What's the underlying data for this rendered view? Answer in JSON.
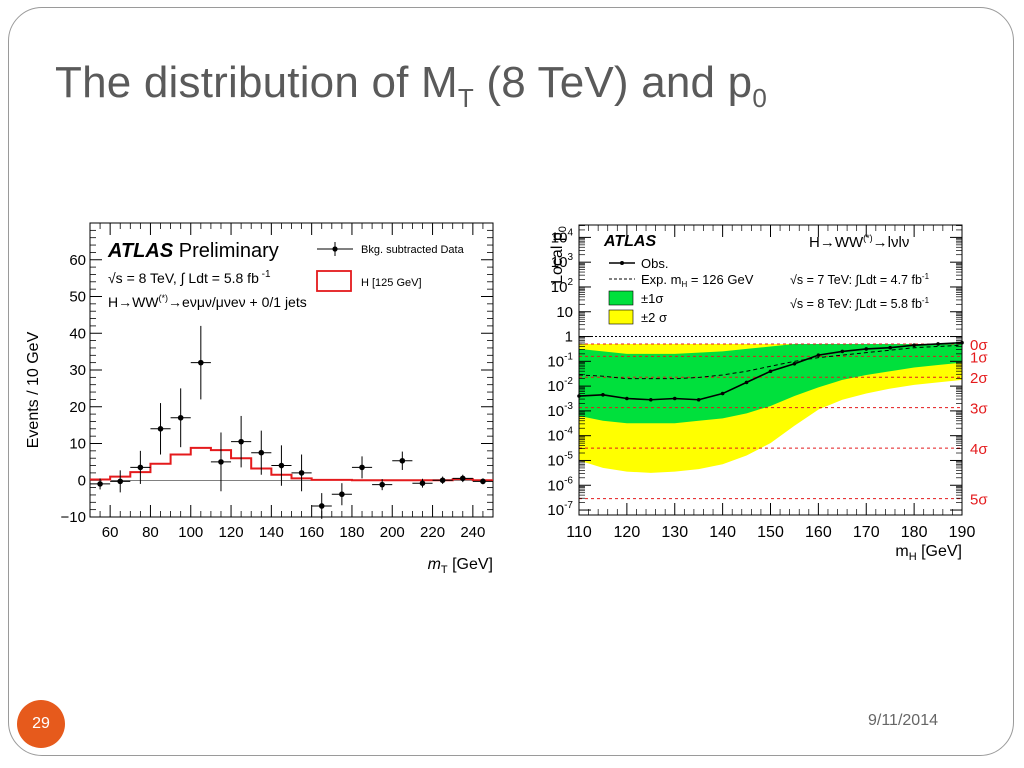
{
  "slide": {
    "title_main": "The distribution of M",
    "title_sub1": "T",
    "title_mid": " (8 TeV) and p",
    "title_sub2": "0",
    "page_number": "29",
    "date": "9/11/2014"
  },
  "colors": {
    "accent": "#e65a1c",
    "hist_red": "#e41a1c",
    "band1": "#00e03c",
    "band2": "#ffff00",
    "sigma_red": "#e41a1c"
  },
  "chart_data": [
    {
      "type": "histogram",
      "ylabel": "Events / 10 GeV",
      "xlabel": "m",
      "xlabel_sub": "T",
      "xlabel_unit": " [GeV]",
      "xlim": [
        50,
        250
      ],
      "ylim": [
        -10,
        70
      ],
      "x_ticks": [
        60,
        80,
        100,
        120,
        140,
        160,
        180,
        200,
        220,
        240
      ],
      "y_ticks": [
        -10,
        0,
        10,
        20,
        30,
        40,
        50,
        60
      ],
      "atlas": "ATLAS",
      "preliminary": "Preliminary",
      "energy_line": "√s = 8 TeV, ∫ Ldt = 5.8 fb",
      "energy_sup": "-1",
      "channel": "H→WW",
      "channel_sup": "(*)",
      "channel_rest": "→eνμν/μνeν + 0/1 jets",
      "legend": {
        "data": "Bkg. subtracted Data",
        "signal": "H [125 GeV]"
      },
      "data_points": [
        {
          "x": 55,
          "y": -1,
          "err": 1.5
        },
        {
          "x": 65,
          "y": -0.3,
          "err": 3
        },
        {
          "x": 75,
          "y": 3.5,
          "err": 4.5
        },
        {
          "x": 85,
          "y": 14,
          "err": 7
        },
        {
          "x": 95,
          "y": 17,
          "err": 8
        },
        {
          "x": 105,
          "y": 32,
          "err": 10
        },
        {
          "x": 115,
          "y": 5,
          "err": 8
        },
        {
          "x": 125,
          "y": 10.5,
          "err": 7
        },
        {
          "x": 135,
          "y": 7.5,
          "err": 6
        },
        {
          "x": 145,
          "y": 4,
          "err": 5.5
        },
        {
          "x": 155,
          "y": 2,
          "err": 5
        },
        {
          "x": 165,
          "y": -7,
          "err": 3.5
        },
        {
          "x": 175,
          "y": -3.8,
          "err": 3
        },
        {
          "x": 185,
          "y": 3.5,
          "err": 3
        },
        {
          "x": 195,
          "y": -1.2,
          "err": 1.5
        },
        {
          "x": 205,
          "y": 5.3,
          "err": 2.5
        },
        {
          "x": 215,
          "y": -0.8,
          "err": 1.2
        },
        {
          "x": 225,
          "y": 0,
          "err": 1
        },
        {
          "x": 235,
          "y": 0.5,
          "err": 1
        },
        {
          "x": 245,
          "y": -0.3,
          "err": 0.8
        }
      ],
      "signal_hist": {
        "edges": [
          50,
          60,
          70,
          80,
          90,
          100,
          110,
          120,
          130,
          140,
          150,
          160,
          170,
          180,
          190,
          200,
          210,
          220,
          230,
          240,
          250
        ],
        "values": [
          0.2,
          1,
          2.2,
          4.5,
          7,
          8.8,
          8.2,
          6,
          3.2,
          1.5,
          0.5,
          0.1,
          0.1,
          0,
          0,
          0,
          0,
          0,
          0.3,
          0
        ]
      }
    },
    {
      "type": "line",
      "ylabel": "Local p",
      "ylabel_sub": "0",
      "xlabel": "m",
      "xlabel_sub": "H",
      "xlabel_unit": " [GeV]",
      "xlim": [
        110,
        190
      ],
      "y_log": true,
      "ylim_exp": [
        -7.2,
        4.5
      ],
      "x_ticks": [
        110,
        120,
        130,
        140,
        150,
        160,
        170,
        180,
        190
      ],
      "y_ticks": [
        {
          "exp": 4,
          "label": "10",
          "sup": "4"
        },
        {
          "exp": 3,
          "label": "10",
          "sup": "3"
        },
        {
          "exp": 2,
          "label": "10",
          "sup": "2"
        },
        {
          "exp": 1,
          "label": "10",
          "sup": ""
        },
        {
          "exp": 0,
          "label": "1",
          "sup": ""
        },
        {
          "exp": -1,
          "label": "10",
          "sup": "-1"
        },
        {
          "exp": -2,
          "label": "10",
          "sup": "-2"
        },
        {
          "exp": -3,
          "label": "10",
          "sup": "-3"
        },
        {
          "exp": -4,
          "label": "10",
          "sup": "-4"
        },
        {
          "exp": -5,
          "label": "10",
          "sup": "-5"
        },
        {
          "exp": -6,
          "label": "10",
          "sup": "-6"
        },
        {
          "exp": -7,
          "label": "10",
          "sup": "-7"
        }
      ],
      "atlas": "ATLAS",
      "process": "H→WW",
      "process_sup": "(*)",
      "process_rest": "→lνlν",
      "lumi7": "√s = 7 TeV: ∫Ldt = 4.7 fb",
      "lumi8": "√s = 8 TeV: ∫Ldt = 5.8 fb",
      "lumi_sup": "-1",
      "legend": {
        "obs": "Obs.",
        "exp": "Exp.  m",
        "exp_sub": "H",
        "exp_rest": " = 126 GeV",
        "band1": "±1σ",
        "band2": "±2 σ"
      },
      "sigma_lines": [
        {
          "label": "0σ",
          "logp": -0.301
        },
        {
          "label": "1σ",
          "logp": -0.8
        },
        {
          "label": "2σ",
          "logp": -1.64
        },
        {
          "label": "3σ",
          "logp": -2.87
        },
        {
          "label": "4σ",
          "logp": -4.5
        },
        {
          "label": "5σ",
          "logp": -6.54
        }
      ],
      "mass": [
        110,
        115,
        120,
        125,
        130,
        135,
        140,
        145,
        150,
        155,
        160,
        165,
        170,
        175,
        180,
        185,
        190
      ],
      "observed_log": [
        -2.4,
        -2.35,
        -2.5,
        -2.55,
        -2.5,
        -2.55,
        -2.3,
        -1.85,
        -1.4,
        -1.1,
        -0.75,
        -0.6,
        -0.5,
        -0.45,
        -0.35,
        -0.3,
        -0.25
      ],
      "expected_log": [
        -1.55,
        -1.6,
        -1.7,
        -1.7,
        -1.7,
        -1.65,
        -1.55,
        -1.4,
        -1.2,
        -1.0,
        -0.85,
        -0.75,
        -0.65,
        -0.55,
        -0.45,
        -0.4,
        -0.35
      ],
      "band1_upper_log": [
        -0.5,
        -0.6,
        -0.7,
        -0.7,
        -0.7,
        -0.65,
        -0.6,
        -0.5,
        -0.4,
        -0.3,
        -0.3,
        -0.3,
        -0.3,
        -0.3,
        -0.3,
        -0.3,
        -0.3
      ],
      "band1_lower_log": [
        -3.2,
        -3.4,
        -3.5,
        -3.5,
        -3.5,
        -3.4,
        -3.3,
        -3.1,
        -2.8,
        -2.4,
        -2.05,
        -1.75,
        -1.55,
        -1.4,
        -1.25,
        -1.15,
        -1.05
      ],
      "band2_upper_log": [
        -0.3,
        -0.3,
        -0.3,
        -0.3,
        -0.3,
        -0.3,
        -0.3,
        -0.3,
        -0.3,
        -0.3,
        -0.3,
        -0.3,
        -0.3,
        -0.3,
        -0.3,
        -0.3,
        -0.3
      ],
      "band2_lower_log": [
        -5.0,
        -5.3,
        -5.45,
        -5.5,
        -5.45,
        -5.35,
        -5.15,
        -4.8,
        -4.3,
        -3.6,
        -2.95,
        -2.55,
        -2.3,
        -2.1,
        -1.95,
        -1.85,
        -1.75
      ]
    }
  ]
}
